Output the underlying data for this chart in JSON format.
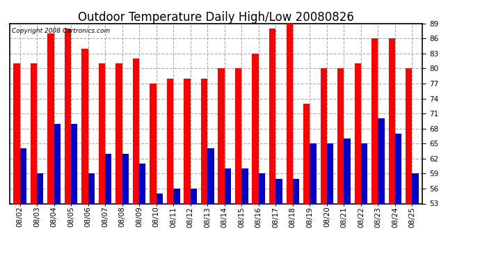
{
  "title": "Outdoor Temperature Daily High/Low 20080826",
  "copyright": "Copyright 2008 Cartronics.com",
  "dates": [
    "08/02",
    "08/03",
    "08/04",
    "08/05",
    "08/06",
    "08/07",
    "08/08",
    "08/09",
    "08/10",
    "08/11",
    "08/12",
    "08/13",
    "08/14",
    "08/15",
    "08/16",
    "08/17",
    "08/18",
    "08/19",
    "08/20",
    "08/21",
    "08/22",
    "08/23",
    "08/24",
    "08/25"
  ],
  "highs": [
    81,
    81,
    87,
    88,
    84,
    81,
    81,
    82,
    77,
    78,
    78,
    78,
    80,
    80,
    83,
    88,
    89,
    73,
    80,
    80,
    81,
    86,
    86,
    80
  ],
  "lows": [
    64,
    59,
    69,
    69,
    59,
    63,
    63,
    61,
    55,
    56,
    56,
    64,
    60,
    60,
    59,
    58,
    58,
    65,
    65,
    66,
    65,
    70,
    67,
    59
  ],
  "high_color": "#ff0000",
  "low_color": "#0000cc",
  "background_color": "#ffffff",
  "grid_color": "#aaaaaa",
  "ylim": [
    53.0,
    89.0
  ],
  "yticks": [
    53.0,
    56.0,
    59.0,
    62.0,
    65.0,
    68.0,
    71.0,
    74.0,
    77.0,
    80.0,
    83.0,
    86.0,
    89.0
  ],
  "bar_width": 0.38,
  "title_fontsize": 12,
  "tick_fontsize": 7.5,
  "copyright_fontsize": 6.5
}
